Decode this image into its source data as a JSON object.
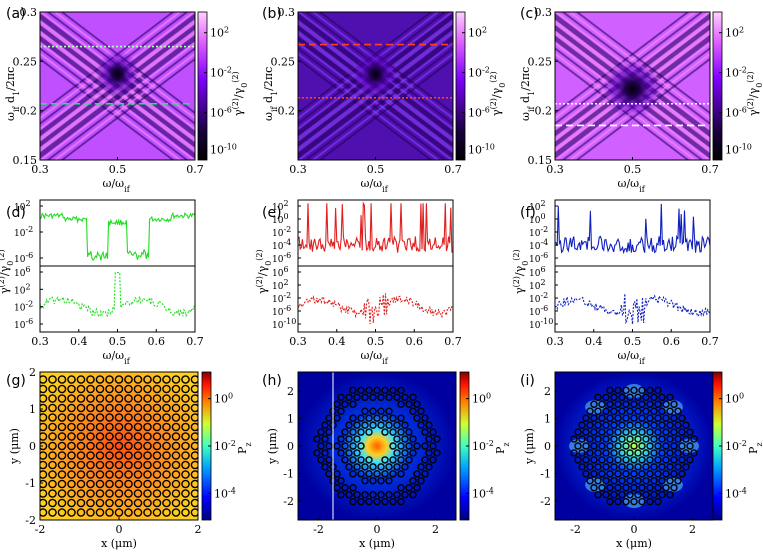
{
  "figure": {
    "panel_labels": [
      "(a)",
      "(b)",
      "(c)",
      "(d)",
      "(e)",
      "(f)",
      "(g)",
      "(h)",
      "(i)"
    ],
    "colors": {
      "cb_low": "#000000",
      "cb_mid": "#7f00ff",
      "cb_high": "#ffc0ff",
      "green": "#22dd22",
      "red": "#e02020",
      "blue": "#1020c0",
      "jet_low": "#00007f",
      "jet_high": "#7f0000"
    }
  },
  "chart_data": [
    {
      "id": "a",
      "type": "heatmap",
      "xlabel": "ω/ω_if",
      "ylabel": "ω_if d_1/2πc",
      "xticks": [
        "0.3",
        "0.5",
        "0.7"
      ],
      "yticks": [
        "0.15",
        "0.2",
        "0.25",
        "0.3"
      ],
      "xlim": [
        0.3,
        0.7
      ],
      "ylim": [
        0.15,
        0.3
      ],
      "colorbar_label": "γ^(2)/γ_0^(2)",
      "colorbar_ticks": [
        "10^2",
        "10^-2",
        "10^-6",
        "10^-10"
      ],
      "lines": [
        {
          "y": 0.265,
          "style": "dotted",
          "color": "#b0ffb0"
        },
        {
          "y": 0.207,
          "style": "dashed",
          "color": "#00ff66"
        }
      ]
    },
    {
      "id": "b",
      "type": "heatmap",
      "xlabel": "ω/ω_if",
      "ylabel": "ω_if d_1/2πc",
      "xticks": [
        "0.3",
        "0.5",
        "0.7"
      ],
      "yticks": [
        "0.2",
        "0.25",
        "0.3"
      ],
      "xlim": [
        0.3,
        0.7
      ],
      "ylim": [
        0.15,
        0.3
      ],
      "colorbar_label": "γ^(2)/γ_0^(2)",
      "colorbar_ticks": [
        "10^2",
        "10^-2",
        "10^-6",
        "10^-10"
      ],
      "lines": [
        {
          "y": 0.267,
          "style": "dashed",
          "color": "#ff4020"
        },
        {
          "y": 0.213,
          "style": "dotted",
          "color": "#ff4020"
        }
      ]
    },
    {
      "id": "c",
      "type": "heatmap",
      "xlabel": "ω/ω_if",
      "ylabel": "ω_if d_1/2πc",
      "xticks": [
        "0.3",
        "0.5",
        "0.7"
      ],
      "yticks": [
        "0.15",
        "0.2",
        "0.25",
        "0.3"
      ],
      "xlim": [
        0.3,
        0.7
      ],
      "ylim": [
        0.15,
        0.3
      ],
      "colorbar_label": "γ^(2)/γ_0^(2)",
      "colorbar_ticks": [
        "10^2",
        "10^-2",
        "10^-6",
        "10^-10"
      ],
      "lines": [
        {
          "y": 0.207,
          "style": "dotted",
          "color": "#ffffff"
        },
        {
          "y": 0.185,
          "style": "dashed",
          "color": "#ffffff"
        }
      ]
    },
    {
      "id": "d",
      "type": "line",
      "xlabel": "ω/ω_if",
      "ylabel": "γ^(2)/γ_0^(2)",
      "xticks": [
        "0.3",
        "0.4",
        "0.5",
        "0.6",
        "0.7"
      ],
      "top_yticks": [
        "10^2",
        "10^-2",
        "10^-6"
      ],
      "bottom_yticks": [
        "10^6",
        "10^2",
        "10^-2",
        "10^-6"
      ],
      "color": "#22dd22"
    },
    {
      "id": "e",
      "type": "line",
      "xlabel": "ω/ω_if",
      "ylabel": "γ^(2)/γ_0^(2)",
      "xticks": [
        "0.3",
        "0.4",
        "0.5",
        "0.6",
        "0.7"
      ],
      "top_yticks": [
        "10^2",
        "10^0",
        "10^-2",
        "10^-4",
        "10^-6"
      ],
      "bottom_yticks": [
        "10^6",
        "10^2",
        "10^-2",
        "10^-6",
        "10^-10"
      ],
      "color": "#e02020"
    },
    {
      "id": "f",
      "type": "line",
      "xlabel": "ω/ω_if",
      "ylabel": "γ^(2)/γ_0^(2)",
      "xticks": [
        "0.3",
        "0.4",
        "0.5",
        "0.6",
        "0.7"
      ],
      "top_yticks": [
        "10^2",
        "10^0",
        "10^-2",
        "10^-4",
        "10^-6"
      ],
      "bottom_yticks": [
        "10^6",
        "10^2",
        "10^-2",
        "10^-6",
        "10^-10"
      ],
      "color": "#1020c0"
    },
    {
      "id": "g",
      "type": "heatmap",
      "xlabel": "x (μm)",
      "ylabel": "y (μm)",
      "xticks": [
        "-2",
        "0",
        "2"
      ],
      "yticks": [
        "-2",
        "-1",
        "0",
        "1",
        "2"
      ],
      "xlim": [
        -2,
        2
      ],
      "ylim": [
        -2,
        2
      ],
      "colorbar_label": "P_z",
      "colorbar_ticks": [
        "10^0",
        "10^-2",
        "10^-4"
      ]
    },
    {
      "id": "h",
      "type": "heatmap",
      "xlabel": "x (μm)",
      "ylabel": "y (μm)",
      "xticks": [
        "-2",
        "0",
        "2"
      ],
      "yticks": [
        "-2",
        "-1",
        "0",
        "1",
        "2"
      ],
      "xlim": [
        -2.7,
        2.7
      ],
      "ylim": [
        -2.7,
        2.7
      ],
      "colorbar_label": "P_z",
      "colorbar_ticks": [
        "10^0",
        "10^-2",
        "10^-4"
      ]
    },
    {
      "id": "i",
      "type": "heatmap",
      "xlabel": "x (μm)",
      "ylabel": "y (μm)",
      "xticks": [
        "-2",
        "0",
        "2"
      ],
      "yticks": [
        "-2",
        "-1",
        "0",
        "1",
        "2"
      ],
      "xlim": [
        -2.7,
        2.7
      ],
      "ylim": [
        -2.7,
        2.7
      ],
      "colorbar_label": "P_z",
      "colorbar_ticks": [
        "10^0",
        "10^-2",
        "10^-4"
      ]
    }
  ]
}
